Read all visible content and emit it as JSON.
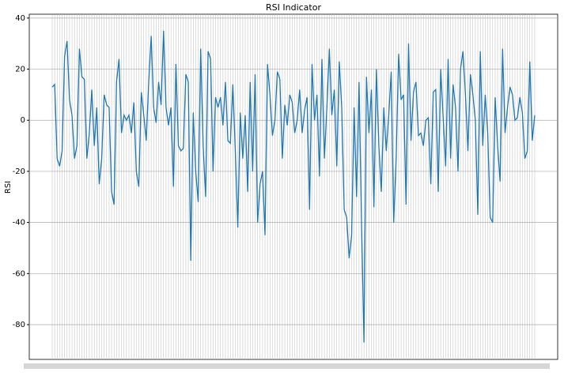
{
  "chart_data": {
    "type": "line",
    "title": "RSI Indicator",
    "y_label": "RSI",
    "color": "#1f77b4",
    "values": [
      13,
      14,
      -15,
      -18,
      -12,
      25,
      31,
      8,
      2,
      -15,
      -10,
      28,
      17,
      16,
      -15,
      -5,
      12,
      -10,
      5,
      -25,
      -15,
      10,
      6,
      5,
      -28,
      -33,
      15,
      24,
      -5,
      2,
      0,
      2,
      -5,
      7,
      -20,
      -26,
      11,
      2,
      -8,
      15,
      33,
      5,
      -1,
      15,
      6,
      35,
      5,
      -2,
      5,
      -26,
      22,
      -10,
      -12,
      -11,
      18,
      15,
      -55,
      3,
      -20,
      -32,
      28,
      -10,
      -30,
      27,
      24,
      -20,
      9,
      5,
      9,
      -2,
      15,
      -8,
      -9,
      14,
      -12,
      -42,
      3,
      -15,
      2,
      -28,
      15,
      -20,
      18,
      -40,
      -25,
      -20,
      -45,
      22,
      10,
      -6,
      0,
      19,
      16,
      -15,
      6,
      -2,
      10,
      7,
      -5,
      0,
      12,
      -5,
      4,
      9,
      -35,
      22,
      0,
      10,
      -22,
      24,
      -15,
      5,
      28,
      2,
      12,
      -18,
      23,
      5,
      -35,
      -38,
      -54,
      -45,
      5,
      -30,
      15,
      -40,
      -87,
      17,
      -5,
      12,
      -34,
      20,
      -10,
      -28,
      5,
      -12,
      2,
      19,
      -40,
      -15,
      26,
      8,
      10,
      -33,
      30,
      -8,
      11,
      15,
      -6,
      -5,
      -10,
      0,
      1,
      -25,
      11,
      12,
      -28,
      20,
      1,
      -18,
      24,
      -15,
      14,
      5,
      -20,
      20,
      27,
      10,
      -12,
      18,
      10,
      0,
      -37,
      27,
      -10,
      10,
      -5,
      -38,
      -40,
      9,
      -10,
      -24,
      28,
      -5,
      5,
      13,
      10,
      0,
      1,
      9,
      3,
      -15,
      -12,
      23,
      -8,
      2
    ],
    "ylim": [
      -93.6,
      41.5
    ],
    "yticks": [
      -80,
      -60,
      -40,
      -20,
      0,
      20,
      40
    ],
    "grid": true
  }
}
